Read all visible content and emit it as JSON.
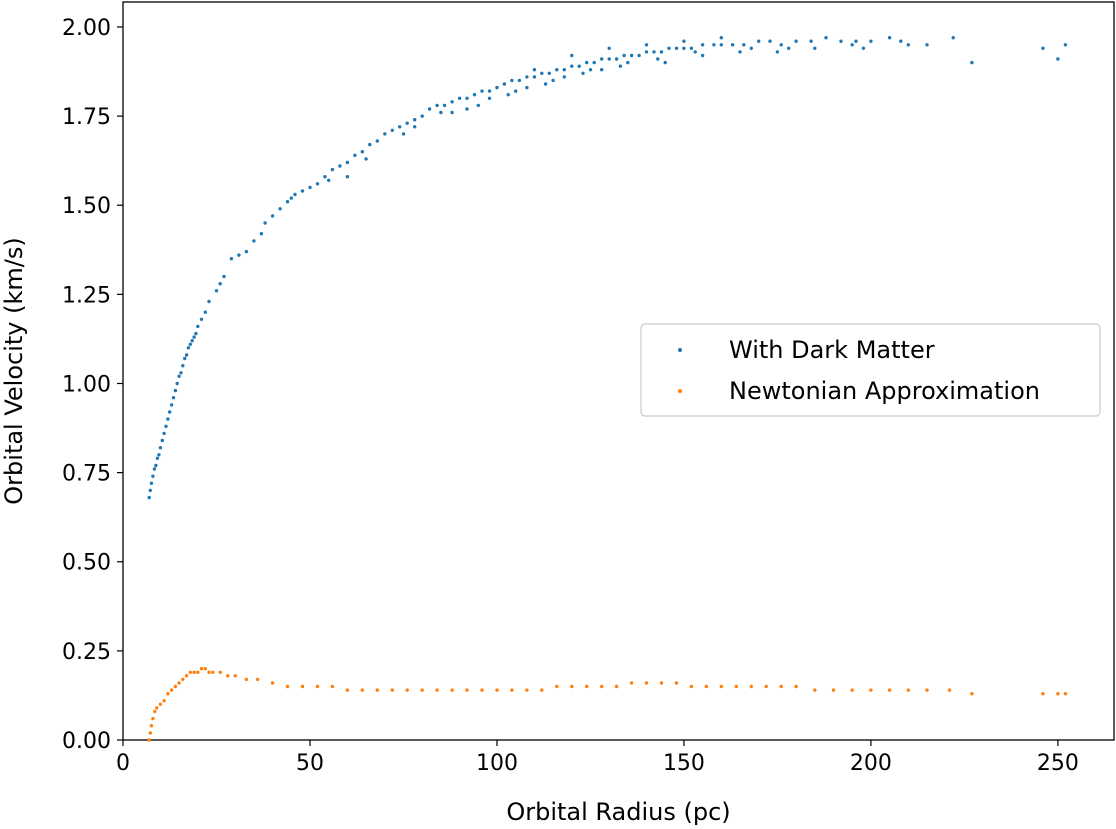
{
  "chart_data": {
    "type": "scatter",
    "title": "",
    "xlabel": "Orbital Radius (pc)",
    "ylabel": "Orbital Velocity (km/s)",
    "xlim": [
      0,
      265
    ],
    "ylim": [
      0,
      2.07
    ],
    "xticks": [
      0,
      50,
      100,
      150,
      200,
      250
    ],
    "xtick_labels": [
      "0",
      "50",
      "100",
      "150",
      "200",
      "250"
    ],
    "yticks": [
      0,
      0.25,
      0.5,
      0.75,
      1.0,
      1.25,
      1.5,
      1.75,
      2.0
    ],
    "ytick_labels": [
      "0.00",
      "0.25",
      "0.50",
      "0.75",
      "1.00",
      "1.25",
      "1.50",
      "1.75",
      "2.00"
    ],
    "grid": false,
    "legend_position": "center-right",
    "series": [
      {
        "name": "With Dark Matter",
        "color": "#1f77b4",
        "points": [
          [
            7,
            0.68
          ],
          [
            7.3,
            0.7
          ],
          [
            7.6,
            0.72
          ],
          [
            8,
            0.74
          ],
          [
            8.4,
            0.76
          ],
          [
            8.8,
            0.77
          ],
          [
            9.2,
            0.79
          ],
          [
            9.6,
            0.8
          ],
          [
            10,
            0.82
          ],
          [
            10.5,
            0.84
          ],
          [
            11,
            0.86
          ],
          [
            11.5,
            0.88
          ],
          [
            12,
            0.9
          ],
          [
            12.5,
            0.92
          ],
          [
            13,
            0.94
          ],
          [
            13.5,
            0.96
          ],
          [
            14,
            0.98
          ],
          [
            14.5,
            1.0
          ],
          [
            15,
            1.02
          ],
          [
            15.5,
            1.03
          ],
          [
            16,
            1.05
          ],
          [
            16.5,
            1.07
          ],
          [
            17,
            1.08
          ],
          [
            17.5,
            1.1
          ],
          [
            18,
            1.11
          ],
          [
            18.5,
            1.12
          ],
          [
            19,
            1.13
          ],
          [
            19.5,
            1.14
          ],
          [
            20,
            1.16
          ],
          [
            21,
            1.18
          ],
          [
            22,
            1.2
          ],
          [
            23,
            1.23
          ],
          [
            25,
            1.26
          ],
          [
            26,
            1.28
          ],
          [
            27,
            1.3
          ],
          [
            29,
            1.35
          ],
          [
            31,
            1.36
          ],
          [
            33,
            1.37
          ],
          [
            35,
            1.4
          ],
          [
            37,
            1.42
          ],
          [
            38,
            1.45
          ],
          [
            40,
            1.47
          ],
          [
            42,
            1.49
          ],
          [
            44,
            1.51
          ],
          [
            46,
            1.53
          ],
          [
            48,
            1.54
          ],
          [
            50,
            1.55
          ],
          [
            52,
            1.56
          ],
          [
            54,
            1.58
          ],
          [
            56,
            1.6
          ],
          [
            58,
            1.61
          ],
          [
            60,
            1.62
          ],
          [
            62,
            1.64
          ],
          [
            64,
            1.65
          ],
          [
            66,
            1.67
          ],
          [
            68,
            1.68
          ],
          [
            70,
            1.7
          ],
          [
            72,
            1.71
          ],
          [
            74,
            1.72
          ],
          [
            76,
            1.73
          ],
          [
            78,
            1.74
          ],
          [
            80,
            1.75
          ],
          [
            82,
            1.77
          ],
          [
            84,
            1.78
          ],
          [
            86,
            1.78
          ],
          [
            88,
            1.79
          ],
          [
            90,
            1.8
          ],
          [
            92,
            1.8
          ],
          [
            94,
            1.81
          ],
          [
            96,
            1.82
          ],
          [
            98,
            1.82
          ],
          [
            100,
            1.83
          ],
          [
            102,
            1.84
          ],
          [
            104,
            1.85
          ],
          [
            106,
            1.85
          ],
          [
            108,
            1.86
          ],
          [
            110,
            1.86
          ],
          [
            112,
            1.87
          ],
          [
            114,
            1.87
          ],
          [
            116,
            1.88
          ],
          [
            118,
            1.88
          ],
          [
            120,
            1.89
          ],
          [
            122,
            1.89
          ],
          [
            124,
            1.9
          ],
          [
            126,
            1.9
          ],
          [
            128,
            1.91
          ],
          [
            130,
            1.91
          ],
          [
            132,
            1.91
          ],
          [
            134,
            1.92
          ],
          [
            136,
            1.92
          ],
          [
            138,
            1.92
          ],
          [
            140,
            1.93
          ],
          [
            142,
            1.93
          ],
          [
            144,
            1.93
          ],
          [
            146,
            1.94
          ],
          [
            148,
            1.94
          ],
          [
            150,
            1.94
          ],
          [
            152,
            1.94
          ],
          [
            155,
            1.95
          ],
          [
            158,
            1.95
          ],
          [
            160,
            1.95
          ],
          [
            163,
            1.95
          ],
          [
            166,
            1.95
          ],
          [
            170,
            1.96
          ],
          [
            173,
            1.96
          ],
          [
            176,
            1.95
          ],
          [
            180,
            1.96
          ],
          [
            184,
            1.96
          ],
          [
            188,
            1.97
          ],
          [
            192,
            1.96
          ],
          [
            196,
            1.96
          ],
          [
            200,
            1.96
          ],
          [
            205,
            1.97
          ],
          [
            210,
            1.95
          ],
          [
            215,
            1.95
          ],
          [
            222,
            1.97
          ],
          [
            227,
            1.9
          ],
          [
            246,
            1.94
          ],
          [
            250,
            1.91
          ],
          [
            252,
            1.95
          ],
          [
            60,
            1.58
          ],
          [
            75,
            1.7
          ],
          [
            85,
            1.76
          ],
          [
            95,
            1.78
          ],
          [
            105,
            1.82
          ],
          [
            115,
            1.85
          ],
          [
            125,
            1.88
          ],
          [
            135,
            1.9
          ],
          [
            145,
            1.9
          ],
          [
            155,
            1.92
          ],
          [
            165,
            1.93
          ],
          [
            175,
            1.93
          ],
          [
            185,
            1.94
          ],
          [
            195,
            1.95
          ],
          [
            110,
            1.88
          ],
          [
            120,
            1.92
          ],
          [
            130,
            1.94
          ],
          [
            140,
            1.95
          ],
          [
            150,
            1.96
          ],
          [
            160,
            1.97
          ],
          [
            45,
            1.52
          ],
          [
            55,
            1.57
          ],
          [
            65,
            1.63
          ],
          [
            78,
            1.72
          ],
          [
            92,
            1.77
          ],
          [
            103,
            1.81
          ],
          [
            113,
            1.84
          ],
          [
            123,
            1.87
          ],
          [
            133,
            1.89
          ],
          [
            143,
            1.91
          ],
          [
            153,
            1.93
          ],
          [
            168,
            1.94
          ],
          [
            178,
            1.94
          ],
          [
            198,
            1.94
          ],
          [
            208,
            1.96
          ],
          [
            88,
            1.76
          ],
          [
            98,
            1.8
          ],
          [
            108,
            1.83
          ],
          [
            118,
            1.86
          ],
          [
            128,
            1.88
          ]
        ]
      },
      {
        "name": "Newtonian Approximation",
        "color": "#ff7f0e",
        "points": [
          [
            7,
            0.0
          ],
          [
            7.3,
            0.02
          ],
          [
            7.6,
            0.04
          ],
          [
            8,
            0.06
          ],
          [
            8.5,
            0.08
          ],
          [
            9,
            0.09
          ],
          [
            10,
            0.1
          ],
          [
            11,
            0.11
          ],
          [
            12,
            0.13
          ],
          [
            13,
            0.14
          ],
          [
            14,
            0.15
          ],
          [
            15,
            0.16
          ],
          [
            16,
            0.17
          ],
          [
            17,
            0.18
          ],
          [
            18,
            0.19
          ],
          [
            19,
            0.19
          ],
          [
            20,
            0.19
          ],
          [
            21,
            0.2
          ],
          [
            22,
            0.2
          ],
          [
            23,
            0.19
          ],
          [
            24,
            0.19
          ],
          [
            26,
            0.19
          ],
          [
            28,
            0.18
          ],
          [
            30,
            0.18
          ],
          [
            33,
            0.17
          ],
          [
            36,
            0.17
          ],
          [
            40,
            0.16
          ],
          [
            44,
            0.15
          ],
          [
            48,
            0.15
          ],
          [
            52,
            0.15
          ],
          [
            56,
            0.15
          ],
          [
            60,
            0.14
          ],
          [
            64,
            0.14
          ],
          [
            68,
            0.14
          ],
          [
            72,
            0.14
          ],
          [
            76,
            0.14
          ],
          [
            80,
            0.14
          ],
          [
            84,
            0.14
          ],
          [
            88,
            0.14
          ],
          [
            92,
            0.14
          ],
          [
            96,
            0.14
          ],
          [
            100,
            0.14
          ],
          [
            104,
            0.14
          ],
          [
            108,
            0.14
          ],
          [
            112,
            0.14
          ],
          [
            116,
            0.15
          ],
          [
            120,
            0.15
          ],
          [
            124,
            0.15
          ],
          [
            128,
            0.15
          ],
          [
            132,
            0.15
          ],
          [
            136,
            0.16
          ],
          [
            140,
            0.16
          ],
          [
            144,
            0.16
          ],
          [
            148,
            0.16
          ],
          [
            152,
            0.15
          ],
          [
            156,
            0.15
          ],
          [
            160,
            0.15
          ],
          [
            164,
            0.15
          ],
          [
            168,
            0.15
          ],
          [
            172,
            0.15
          ],
          [
            176,
            0.15
          ],
          [
            180,
            0.15
          ],
          [
            185,
            0.14
          ],
          [
            190,
            0.14
          ],
          [
            195,
            0.14
          ],
          [
            200,
            0.14
          ],
          [
            205,
            0.14
          ],
          [
            210,
            0.14
          ],
          [
            215,
            0.14
          ],
          [
            221,
            0.14
          ],
          [
            227,
            0.13
          ],
          [
            246,
            0.13
          ],
          [
            250,
            0.13
          ],
          [
            252,
            0.13
          ]
        ]
      }
    ]
  }
}
